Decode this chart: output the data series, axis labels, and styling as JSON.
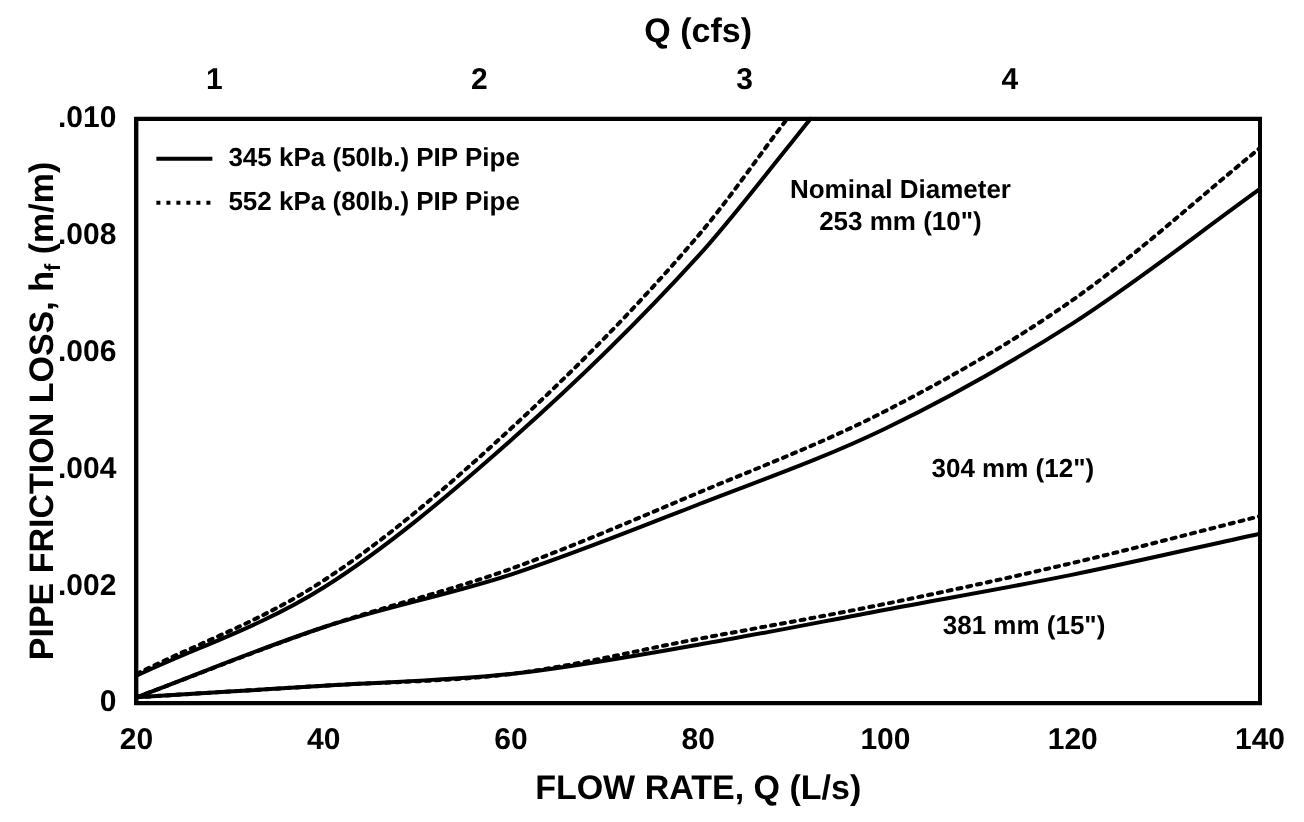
{
  "chart_data": {
    "type": "line",
    "xlabel": "FLOW RATE, Q (L/s)",
    "ylabel": "PIPE FRICTION LOSS, h$_{f}$ (m/m)",
    "x2label": "Q (cfs)",
    "xlim": [
      20,
      140
    ],
    "xticks": [
      20,
      40,
      60,
      80,
      100,
      120,
      140
    ],
    "x2lim": [
      0.706,
      4.944
    ],
    "x2ticks": [
      1,
      2,
      3,
      4
    ],
    "ylim": [
      0,
      0.01
    ],
    "yticks": [
      {
        "value": 0,
        "label": "0"
      },
      {
        "value": 0.002,
        "label": ".002"
      },
      {
        "value": 0.004,
        "label": ".004"
      },
      {
        "value": 0.006,
        "label": ".006"
      },
      {
        "value": 0.008,
        "label": ".008"
      },
      {
        "value": 0.01,
        "label": ".010"
      }
    ],
    "grid": false,
    "legend": "top left",
    "marker": "none",
    "series": [
      {
        "name": "345 kPa (50lb.) PIP Pipe",
        "color": "#000000",
        "line_style": "solid",
        "x": [
          20,
          40,
          60,
          80,
          90,
          92
        ],
        "values": [
          0.00047,
          0.00198,
          0.0045,
          0.00765,
          0.0096,
          0.01
        ]
      },
      {
        "name": "552 kPa (80lb.) PIP Pipe",
        "color": "#000000",
        "line_style": "dotted",
        "x": [
          20,
          40,
          60,
          80,
          89.5
        ],
        "values": [
          0.0005,
          0.0021,
          0.0047,
          0.008,
          0.01
        ]
      },
      {
        "color": "#000000",
        "line_style": "solid",
        "x": [
          20,
          40,
          60,
          80,
          100,
          120,
          140
        ],
        "values": [
          0.0001,
          0.0013,
          0.0022,
          0.0034,
          0.0047,
          0.0065,
          0.0088
        ]
      },
      {
        "color": "#000000",
        "line_style": "dotted",
        "x": [
          20,
          40,
          60,
          80,
          100,
          120,
          140
        ],
        "values": [
          0.0001,
          0.0013,
          0.0023,
          0.0036,
          0.005,
          0.0069,
          0.0095
        ]
      },
      {
        "color": "#000000",
        "line_style": "solid",
        "x": [
          20,
          40,
          60,
          80,
          100,
          120,
          140
        ],
        "values": [
          0.0001,
          0.0003,
          0.0005,
          0.001,
          0.0016,
          0.0022,
          0.0029
        ]
      },
      {
        "color": "#000000",
        "line_style": "dotted",
        "x": [
          20,
          40,
          60,
          80,
          100,
          120,
          140
        ],
        "values": [
          0.0001,
          0.0003,
          0.0005,
          0.0011,
          0.0017,
          0.0024,
          0.0032
        ]
      }
    ],
    "annotations": [
      "Nominal Diameter\n253 mm (10\")",
      "304 mm (12\")",
      "381 mm (15\")"
    ]
  }
}
